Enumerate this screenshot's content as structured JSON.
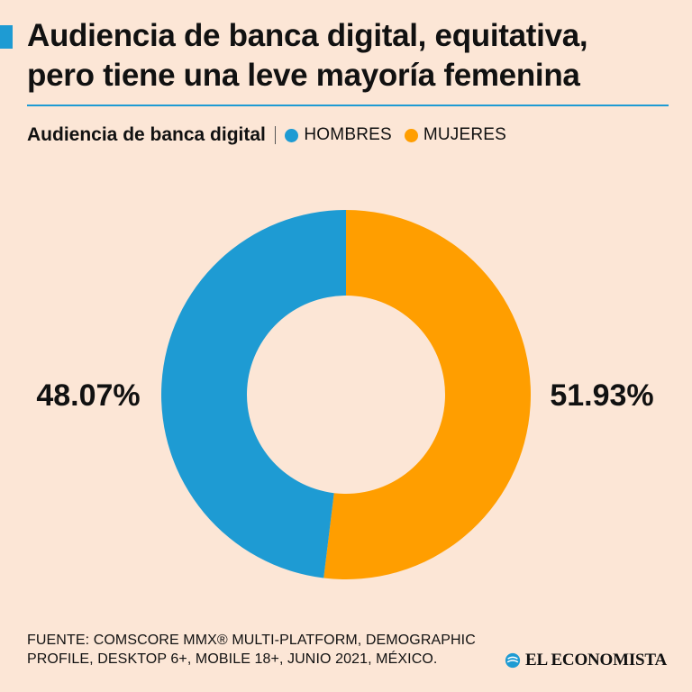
{
  "header": {
    "title_line1": "Audiencia de banca digital, equitativa,",
    "title_line2": "pero tiene una leve mayoría femenina",
    "accent_color": "#1E9BD3"
  },
  "legend": {
    "title": "Audiencia de banca digital",
    "items": [
      {
        "label": "HOMBRES",
        "color": "#1E9BD3"
      },
      {
        "label": "MUJERES",
        "color": "#FF9E00"
      }
    ]
  },
  "chart_data": {
    "type": "pie",
    "donut": true,
    "title": "Audiencia de banca digital",
    "categories": [
      "HOMBRES",
      "MUJERES"
    ],
    "values": [
      48.07,
      51.93
    ],
    "value_labels": [
      "48.07%",
      "51.93%"
    ],
    "colors": [
      "#1E9BD3",
      "#FF9E00"
    ],
    "legend_position": "top-left"
  },
  "footer": {
    "source_line1": "FUENTE: COMSCORE MMX® MULTI-PLATFORM, DEMOGRAPHIC",
    "source_line2": "PROFILE, DESKTOP 6+, MOBILE 18+, JUNIO 2021, MÉXICO.",
    "brand": "EL ECONOMISTA"
  }
}
